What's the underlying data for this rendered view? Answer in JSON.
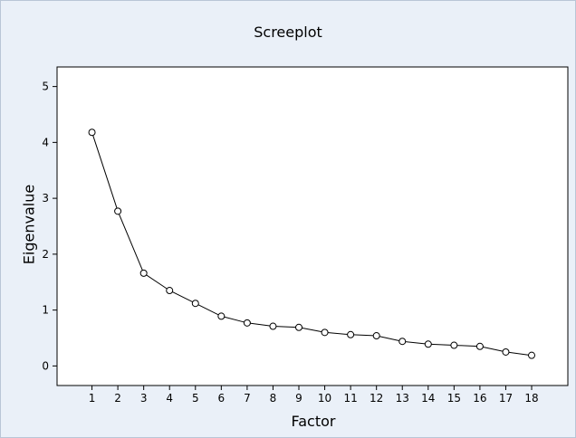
{
  "chart_data": {
    "type": "line",
    "title": "Screeplot",
    "xlabel": "Factor",
    "ylabel": "Eigenvalue",
    "x": [
      1,
      2,
      3,
      4,
      5,
      6,
      7,
      8,
      9,
      10,
      11,
      12,
      13,
      14,
      15,
      16,
      17,
      18
    ],
    "y": [
      4.18,
      2.77,
      1.66,
      1.35,
      1.12,
      0.89,
      0.77,
      0.71,
      0.69,
      0.6,
      0.56,
      0.54,
      0.44,
      0.39,
      0.37,
      0.35,
      0.25,
      0.19
    ],
    "x_ticks": [
      "1",
      "2",
      "3",
      "4",
      "5",
      "6",
      "7",
      "8",
      "9",
      "10",
      "11",
      "12",
      "13",
      "14",
      "15",
      "16",
      "17",
      "18"
    ],
    "y_ticks": [
      "0",
      "1",
      "2",
      "3",
      "4",
      "5"
    ],
    "xlim": [
      -0.35,
      19.4
    ],
    "ylim": [
      -0.35,
      5.35
    ],
    "marker": "open-circle",
    "grid": false,
    "line_color": "#000000",
    "plot_background": "#ffffff",
    "figure_background": "#eaf0f8"
  }
}
